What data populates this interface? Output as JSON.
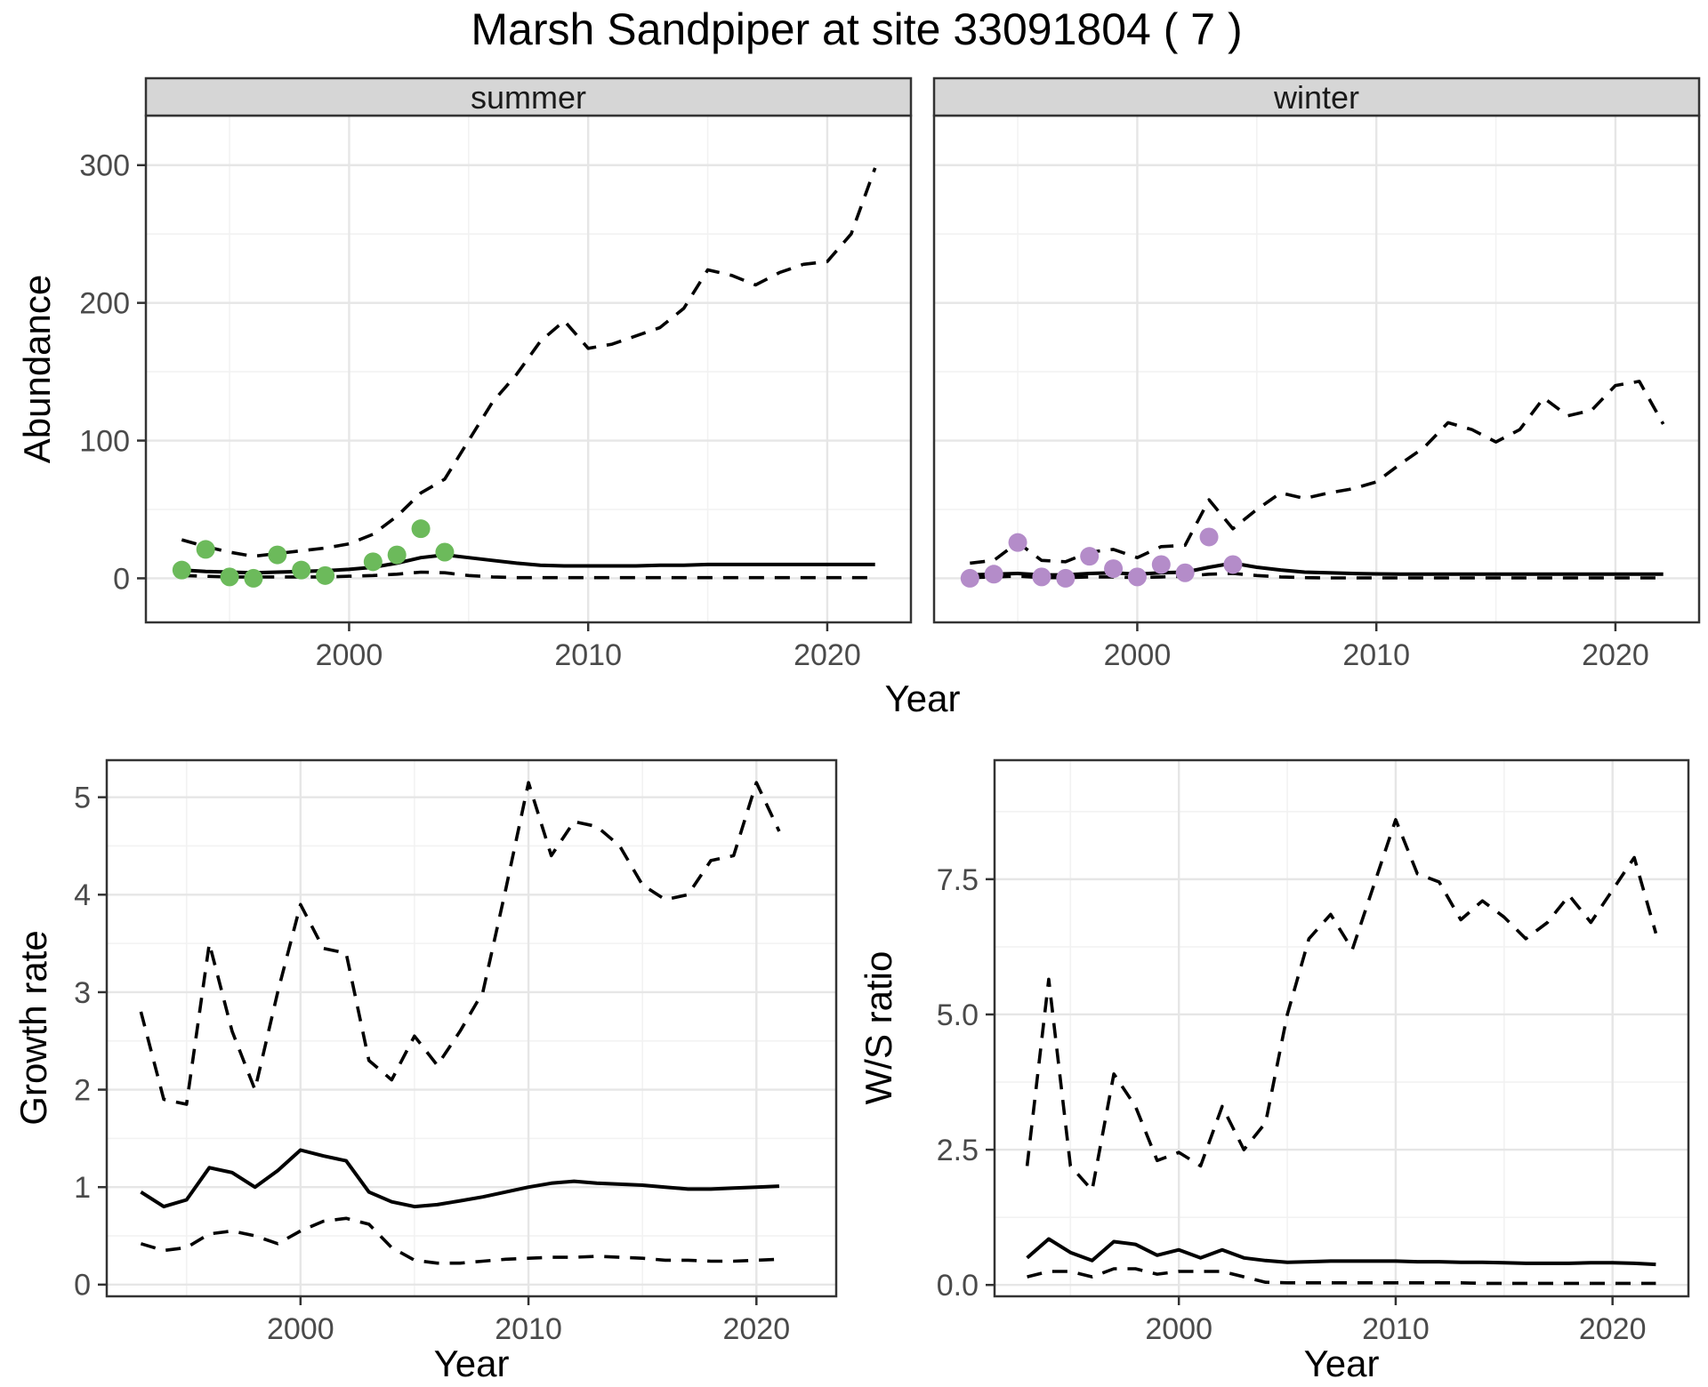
{
  "title": "Marsh Sandpiper at site 33091804 ( 7 )",
  "colors": {
    "summer_point": "#6cba5b",
    "winter_point": "#b48cc9",
    "line": "#000000",
    "grid_major": "#e6e6e6",
    "grid_minor": "#f2f2f2",
    "strip_bg": "#d6d6d6",
    "panel_border": "#333333",
    "tick_text": "#4a4a4a"
  },
  "chart_data": [
    {
      "id": "abundance-summer",
      "type": "line",
      "facet_label": "summer",
      "ylabel": "Abundance",
      "xlabel": "Year",
      "xlim": [
        1991.5,
        2023.5
      ],
      "ylim": [
        -32,
        336
      ],
      "xticks": [
        {
          "v": 2000,
          "label": "2000"
        },
        {
          "v": 2010,
          "label": "2010"
        },
        {
          "v": 2020,
          "label": "2020"
        }
      ],
      "yticks": [
        {
          "v": 0,
          "label": "0"
        },
        {
          "v": 100,
          "label": "100"
        },
        {
          "v": 200,
          "label": "200"
        },
        {
          "v": 300,
          "label": "300"
        }
      ],
      "xminor": [
        1995,
        2005,
        2015
      ],
      "yminor": [
        50,
        150,
        250
      ],
      "years": [
        1993,
        1994,
        1995,
        1996,
        1997,
        1998,
        1999,
        2000,
        2001,
        2002,
        2003,
        2004,
        2005,
        2006,
        2007,
        2008,
        2009,
        2010,
        2011,
        2012,
        2013,
        2014,
        2015,
        2016,
        2017,
        2018,
        2019,
        2020,
        2021,
        2022
      ],
      "series": [
        {
          "name": "lower-ci",
          "style": "dashed",
          "values": [
            2,
            1.5,
            1,
            1,
            1,
            1,
            1,
            1.5,
            2,
            3,
            4.5,
            4,
            2,
            1,
            0.5,
            0.5,
            0.5,
            0.5,
            0.5,
            0.5,
            0.5,
            0.5,
            0.5,
            0.5,
            0.5,
            0.5,
            0.5,
            0.5,
            0.5,
            0.5
          ]
        },
        {
          "name": "upper-ci",
          "style": "dashed",
          "values": [
            28,
            23,
            19,
            16,
            18,
            20,
            22,
            25,
            32,
            45,
            62,
            72,
            100,
            128,
            148,
            172,
            187,
            167,
            170,
            176,
            182,
            196,
            224,
            220,
            213,
            222,
            228,
            230,
            250,
            298
          ]
        },
        {
          "name": "median-fit",
          "style": "solid",
          "values": [
            6,
            5,
            4.5,
            4,
            4.5,
            5,
            5.5,
            6.5,
            8,
            11,
            15,
            17,
            15,
            13,
            11,
            9.5,
            9,
            9,
            9,
            9,
            9.5,
            9.5,
            10,
            10,
            10,
            10,
            10,
            10,
            10,
            10
          ]
        }
      ],
      "points": {
        "name": "summer-observed-counts",
        "color": "#6cba5b",
        "years": [
          1993,
          1994,
          1995,
          1996,
          1997,
          1998,
          1999,
          2001,
          2002,
          2003,
          2004
        ],
        "values": [
          6,
          21,
          1,
          0,
          17,
          6,
          2,
          12,
          17,
          36,
          19
        ]
      }
    },
    {
      "id": "abundance-winter",
      "type": "line",
      "facet_label": "winter",
      "ylabel": "Abundance",
      "xlabel": "Year",
      "xlim": [
        1991.5,
        2023.5
      ],
      "ylim": [
        -32,
        336
      ],
      "xticks": [
        {
          "v": 2000,
          "label": "2000"
        },
        {
          "v": 2010,
          "label": "2010"
        },
        {
          "v": 2020,
          "label": "2020"
        }
      ],
      "yticks": [
        {
          "v": 0,
          "label": "0"
        },
        {
          "v": 100,
          "label": "100"
        },
        {
          "v": 200,
          "label": "200"
        },
        {
          "v": 300,
          "label": "300"
        }
      ],
      "xminor": [
        1995,
        2005,
        2015
      ],
      "yminor": [
        50,
        150,
        250
      ],
      "years": [
        1993,
        1994,
        1995,
        1996,
        1997,
        1998,
        1999,
        2000,
        2001,
        2002,
        2003,
        2004,
        2005,
        2006,
        2007,
        2008,
        2009,
        2010,
        2011,
        2012,
        2013,
        2014,
        2015,
        2016,
        2017,
        2018,
        2019,
        2020,
        2021,
        2022
      ],
      "series": [
        {
          "name": "lower-ci",
          "style": "dashed",
          "values": [
            0.5,
            1,
            1.5,
            0.5,
            0.5,
            1,
            1,
            0.5,
            1,
            1.5,
            3,
            3.5,
            2,
            1,
            0.5,
            0.3,
            0.3,
            0.3,
            0.3,
            0.3,
            0.3,
            0.3,
            0.3,
            0.3,
            0.3,
            0.3,
            0.3,
            0.3,
            0.3,
            0.3
          ]
        },
        {
          "name": "upper-ci",
          "style": "dashed",
          "values": [
            11,
            13,
            26,
            13,
            12,
            19,
            21,
            15,
            23,
            24,
            57,
            36,
            50,
            62,
            58,
            62,
            65,
            70,
            83,
            95,
            113,
            108,
            99,
            108,
            131,
            118,
            122,
            140,
            143,
            112
          ]
        },
        {
          "name": "median-fit",
          "style": "solid",
          "values": [
            2.5,
            3,
            3.5,
            2.5,
            2.5,
            3.5,
            4,
            3,
            4,
            4.5,
            8,
            11,
            8,
            6,
            4.5,
            4,
            3.5,
            3.2,
            3,
            3,
            3,
            3,
            3,
            3,
            3,
            3,
            3,
            3,
            3,
            3
          ]
        }
      ],
      "points": {
        "name": "winter-observed-counts",
        "color": "#b48cc9",
        "years": [
          1993,
          1994,
          1995,
          1996,
          1997,
          1998,
          1999,
          2000,
          2001,
          2002,
          2003,
          2004
        ],
        "values": [
          0,
          3,
          26,
          1,
          0,
          16,
          7,
          1,
          10,
          4,
          30,
          10
        ]
      }
    },
    {
      "id": "growth-rate",
      "type": "line",
      "ylabel": "Growth rate",
      "xlabel": "Year",
      "xlim": [
        1991.5,
        2023.5
      ],
      "ylim": [
        -0.12,
        5.38
      ],
      "xticks": [
        {
          "v": 2000,
          "label": "2000"
        },
        {
          "v": 2010,
          "label": "2010"
        },
        {
          "v": 2020,
          "label": "2020"
        }
      ],
      "yticks": [
        {
          "v": 0,
          "label": "0"
        },
        {
          "v": 1,
          "label": "1"
        },
        {
          "v": 2,
          "label": "2"
        },
        {
          "v": 3,
          "label": "3"
        },
        {
          "v": 4,
          "label": "4"
        },
        {
          "v": 5,
          "label": "5"
        }
      ],
      "xminor": [
        1995,
        2005,
        2015
      ],
      "yminor": [
        0.5,
        1.5,
        2.5,
        3.5,
        4.5
      ],
      "years": [
        1993,
        1994,
        1995,
        1996,
        1997,
        1998,
        1999,
        2000,
        2001,
        2002,
        2003,
        2004,
        2005,
        2006,
        2007,
        2008,
        2009,
        2010,
        2011,
        2012,
        2013,
        2014,
        2015,
        2016,
        2017,
        2018,
        2019,
        2020,
        2021
      ],
      "series": [
        {
          "name": "lower-ci",
          "style": "dashed",
          "values": [
            0.42,
            0.35,
            0.38,
            0.52,
            0.55,
            0.5,
            0.42,
            0.55,
            0.65,
            0.68,
            0.62,
            0.38,
            0.25,
            0.22,
            0.22,
            0.24,
            0.26,
            0.27,
            0.28,
            0.28,
            0.29,
            0.28,
            0.27,
            0.25,
            0.25,
            0.24,
            0.24,
            0.25,
            0.26
          ]
        },
        {
          "name": "upper-ci",
          "style": "dashed",
          "values": [
            2.8,
            1.9,
            1.85,
            3.5,
            2.6,
            2.0,
            3.0,
            3.9,
            3.45,
            3.4,
            2.3,
            2.1,
            2.55,
            2.25,
            2.6,
            3.0,
            4.05,
            5.15,
            4.4,
            4.75,
            4.7,
            4.5,
            4.1,
            3.95,
            4.0,
            4.35,
            4.4,
            5.15,
            4.65
          ]
        },
        {
          "name": "median-fit",
          "style": "solid",
          "values": [
            0.95,
            0.8,
            0.87,
            1.2,
            1.15,
            1.0,
            1.17,
            1.38,
            1.32,
            1.27,
            0.95,
            0.85,
            0.8,
            0.82,
            0.86,
            0.9,
            0.95,
            1.0,
            1.04,
            1.06,
            1.04,
            1.03,
            1.02,
            1.0,
            0.98,
            0.98,
            0.99,
            1.0,
            1.01
          ]
        }
      ]
    },
    {
      "id": "ws-ratio",
      "type": "line",
      "ylabel": "W/S ratio",
      "xlabel": "Year",
      "xlim": [
        1991.5,
        2023.5
      ],
      "ylim": [
        -0.21,
        9.7
      ],
      "xticks": [
        {
          "v": 2000,
          "label": "2000"
        },
        {
          "v": 2010,
          "label": "2010"
        },
        {
          "v": 2020,
          "label": "2020"
        }
      ],
      "yticks": [
        {
          "v": 0,
          "label": "0.0"
        },
        {
          "v": 2.5,
          "label": "2.5"
        },
        {
          "v": 5,
          "label": "5.0"
        },
        {
          "v": 7.5,
          "label": "7.5"
        }
      ],
      "xminor": [
        1995,
        2005,
        2015
      ],
      "yminor": [
        1.25,
        3.75,
        6.25,
        8.75
      ],
      "years": [
        1993,
        1994,
        1995,
        1996,
        1997,
        1998,
        1999,
        2000,
        2001,
        2002,
        2003,
        2004,
        2005,
        2006,
        2007,
        2008,
        2009,
        2010,
        2011,
        2012,
        2013,
        2014,
        2015,
        2016,
        2017,
        2018,
        2019,
        2020,
        2021,
        2022
      ],
      "series": [
        {
          "name": "lower-ci",
          "style": "dashed",
          "values": [
            0.15,
            0.25,
            0.25,
            0.15,
            0.3,
            0.3,
            0.2,
            0.25,
            0.25,
            0.25,
            0.15,
            0.05,
            0.04,
            0.04,
            0.04,
            0.04,
            0.04,
            0.04,
            0.04,
            0.04,
            0.04,
            0.03,
            0.03,
            0.03,
            0.03,
            0.03,
            0.03,
            0.03,
            0.03,
            0.03
          ]
        },
        {
          "name": "upper-ci",
          "style": "dashed",
          "values": [
            2.2,
            5.65,
            2.2,
            1.75,
            3.9,
            3.3,
            2.3,
            2.45,
            2.2,
            3.3,
            2.5,
            3.0,
            5.0,
            6.4,
            6.85,
            6.2,
            7.4,
            8.6,
            7.6,
            7.45,
            6.75,
            7.1,
            6.8,
            6.4,
            6.7,
            7.2,
            6.7,
            7.3,
            7.9,
            6.5
          ]
        },
        {
          "name": "median-fit",
          "style": "solid",
          "values": [
            0.5,
            0.85,
            0.6,
            0.45,
            0.8,
            0.75,
            0.55,
            0.65,
            0.5,
            0.65,
            0.5,
            0.45,
            0.42,
            0.43,
            0.44,
            0.44,
            0.44,
            0.44,
            0.43,
            0.43,
            0.42,
            0.42,
            0.41,
            0.4,
            0.4,
            0.4,
            0.41,
            0.41,
            0.4,
            0.38
          ]
        }
      ]
    }
  ]
}
